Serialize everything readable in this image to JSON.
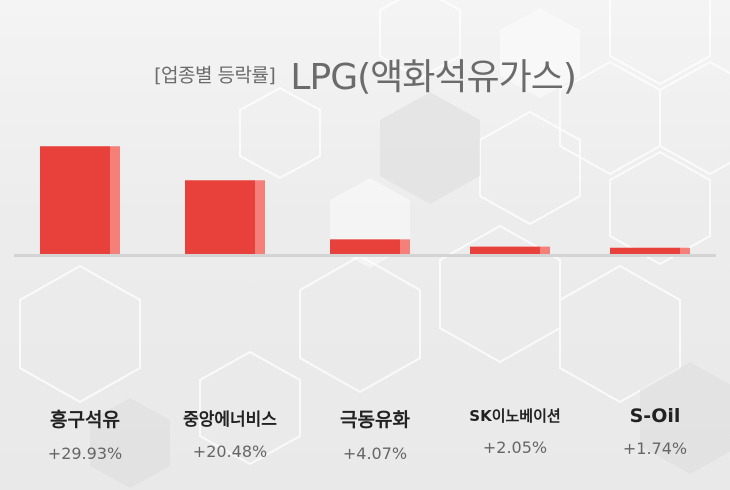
{
  "title": {
    "prefix": "[업종별 등락률]",
    "main": "LPG(액화석유가스)"
  },
  "colors": {
    "bar_face": "#e8403a",
    "bar_side": "#f5807a",
    "axis": "#d4d4d4",
    "title": "#6b6b6b",
    "name": "#222222",
    "value": "#666666"
  },
  "chart_data": {
    "type": "bar",
    "categories": [
      "흥구석유",
      "중앙에너비스",
      "극동유화",
      "SK이노베이션",
      "S-Oil"
    ],
    "values": [
      29.93,
      20.48,
      4.07,
      2.05,
      1.74
    ],
    "value_labels": [
      "+29.93%",
      "+20.48%",
      "+4.07%",
      "+2.05%",
      "+1.74%"
    ],
    "title": "[업종별 등락률] LPG(액화석유가스)",
    "xlabel": "",
    "ylabel": "",
    "ylim": [
      0,
      30
    ],
    "grid": false,
    "legend": "none"
  }
}
